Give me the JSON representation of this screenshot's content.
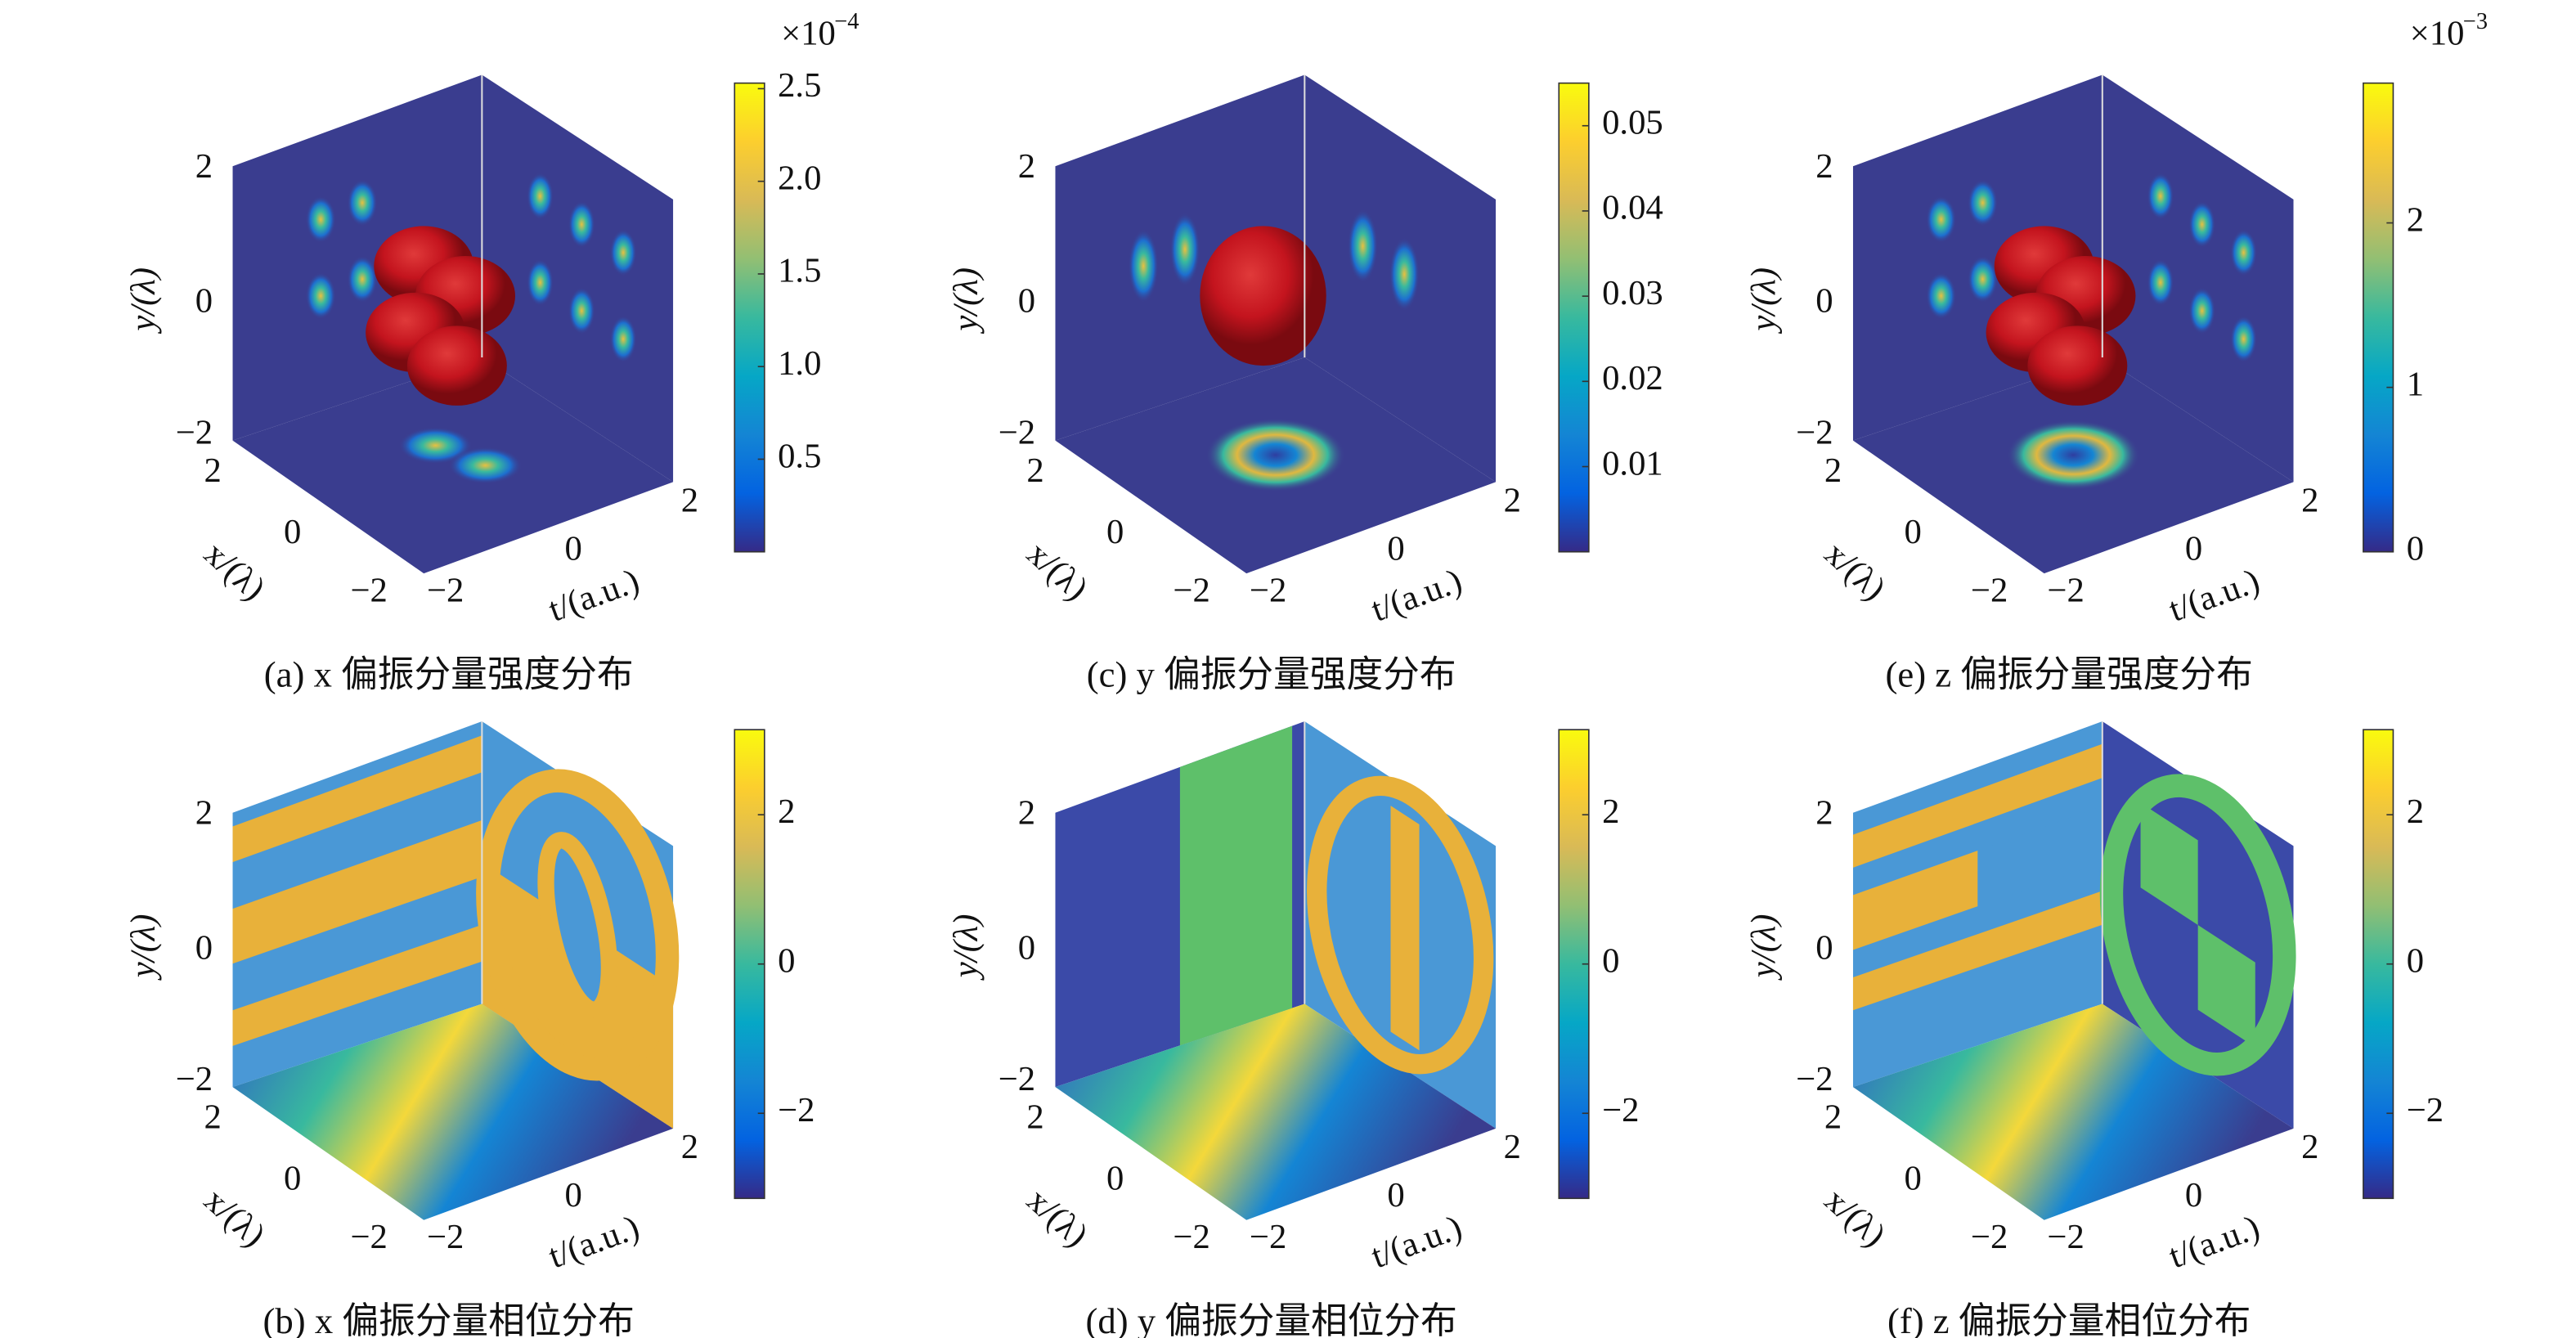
{
  "panels": [
    {
      "caption": "(a) x 偏振分量强度分布",
      "y_axis_label": "y/(λ)",
      "x_axis_label": "x/(λ)",
      "t_axis_label": "t/(a.u.)",
      "y_ticks": [
        "2",
        "0",
        "−2"
      ],
      "x_ticks": [
        "2",
        "0",
        "−2"
      ],
      "t_ticks": [
        "−2",
        "0",
        "2"
      ],
      "colorbar": {
        "lim": [
          0,
          2.53
        ],
        "ticks": [
          0.5,
          {
            "value": 1,
            "label": "1.0"
          },
          1.5,
          {
            "value": 2,
            "label": "2.0"
          },
          2.5
        ],
        "multiplier_base": "×10",
        "multiplier_exponent": "−4"
      }
    },
    {
      "caption": "(c) y 偏振分量强度分布",
      "y_axis_label": "y/(λ)",
      "x_axis_label": "x/(λ)",
      "t_axis_label": "t/(a.u.)",
      "y_ticks": [
        "2",
        "0",
        "−2"
      ],
      "x_ticks": [
        "2",
        "0",
        "−2"
      ],
      "t_ticks": [
        "−2",
        "0",
        "2"
      ],
      "colorbar": {
        "lim": [
          0,
          0.055
        ],
        "ticks": [
          0.01,
          0.02,
          0.03,
          0.04,
          0.05
        ]
      }
    },
    {
      "caption": "(e) z 偏振分量强度分布",
      "y_axis_label": "y/(λ)",
      "x_axis_label": "x/(λ)",
      "t_axis_label": "t/(a.u.)",
      "y_ticks": [
        "2",
        "0",
        "−2"
      ],
      "x_ticks": [
        "2",
        "0",
        "−2"
      ],
      "t_ticks": [
        "−2",
        "0",
        "2"
      ],
      "colorbar": {
        "lim": [
          0,
          2.85
        ],
        "ticks": [
          0,
          1,
          2
        ],
        "multiplier_base": "×10",
        "multiplier_exponent": "−3"
      }
    },
    {
      "caption": "(b) x 偏振分量相位分布",
      "y_axis_label": "y/(λ)",
      "x_axis_label": "x/(λ)",
      "t_axis_label": "t/(a.u.)",
      "y_ticks": [
        "2",
        "0",
        "−2"
      ],
      "x_ticks": [
        "2",
        "0",
        "−2"
      ],
      "t_ticks": [
        "−2",
        "0",
        "2"
      ],
      "colorbar": {
        "lim": [
          -3.14,
          3.14
        ],
        "ticks": [
          {
            "value": -2,
            "label": "−2"
          },
          0,
          2
        ]
      }
    },
    {
      "caption": "(d) y 偏振分量相位分布",
      "y_axis_label": "y/(λ)",
      "x_axis_label": "x/(λ)",
      "t_axis_label": "t/(a.u.)",
      "y_ticks": [
        "2",
        "0",
        "−2"
      ],
      "x_ticks": [
        "2",
        "0",
        "−2"
      ],
      "t_ticks": [
        "−2",
        "0",
        "2"
      ],
      "colorbar": {
        "lim": [
          -3.14,
          3.14
        ],
        "ticks": [
          {
            "value": -2,
            "label": "−2"
          },
          0,
          2
        ]
      }
    },
    {
      "caption": "(f) z 偏振分量相位分布",
      "y_axis_label": "y/(λ)",
      "x_axis_label": "x/(λ)",
      "t_axis_label": "t/(a.u.)",
      "y_ticks": [
        "2",
        "0",
        "−2"
      ],
      "x_ticks": [
        "2",
        "0",
        "−2"
      ],
      "t_ticks": [
        "−2",
        "0",
        "2"
      ],
      "colorbar": {
        "lim": [
          -3.14,
          3.14
        ],
        "ticks": [
          {
            "value": -2,
            "label": "−2"
          },
          0,
          2
        ]
      }
    }
  ]
}
